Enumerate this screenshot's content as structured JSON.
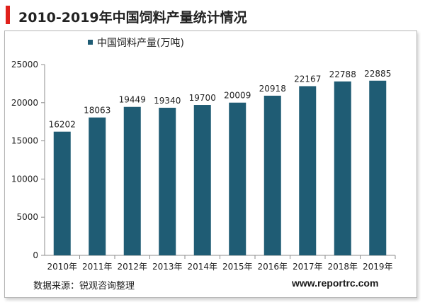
{
  "header": {
    "title": "2010-2019年中国饲料产量统计情况"
  },
  "footer": {
    "source": "数据来源：锐观咨询整理",
    "website": "www.reportrc.com"
  },
  "colors": {
    "accent": "#e0201b",
    "bar": "#1f5c74"
  },
  "chart_data": {
    "type": "bar",
    "title": "",
    "xlabel": "",
    "ylabel": "",
    "categories": [
      "2010年",
      "2011年",
      "2012年",
      "2013年",
      "2014年",
      "2015年",
      "2016年",
      "2017年",
      "2018年",
      "2019年"
    ],
    "series": [
      {
        "name": "中国饲料产量(万吨)",
        "values": [
          16202,
          18063,
          19449,
          19340,
          19700,
          20009,
          20918,
          22167,
          22788,
          22885
        ]
      }
    ],
    "ylim": [
      0,
      25000
    ],
    "yticks": [
      0,
      5000,
      10000,
      15000,
      20000,
      25000
    ],
    "grid": false,
    "legend_position": "top-left",
    "data_labels": true
  }
}
